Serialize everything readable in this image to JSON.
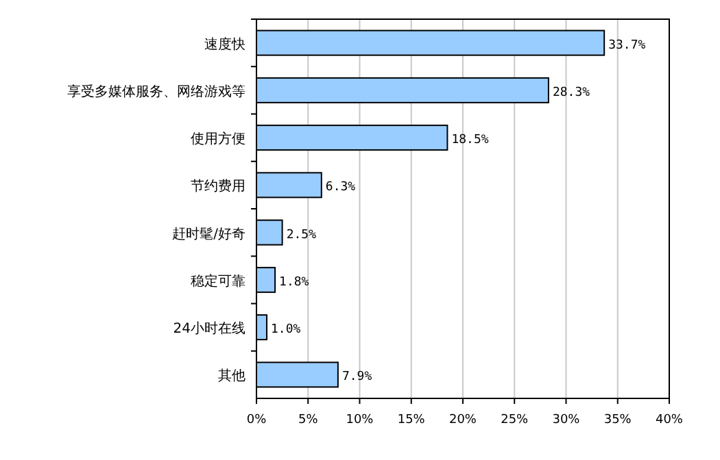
{
  "chart_data": {
    "type": "bar",
    "orientation": "horizontal",
    "categories": [
      "速度快",
      "享受多媒体服务、网络游戏等",
      "使用方便",
      "节约费用",
      "赶时髦/好奇",
      "稳定可靠",
      "24小时在线",
      "其他"
    ],
    "values": [
      33.7,
      28.3,
      18.5,
      6.3,
      2.5,
      1.8,
      1.0,
      7.9
    ],
    "value_labels": [
      "33.7%",
      "28.3%",
      "18.5%",
      "6.3%",
      "2.5%",
      "1.8%",
      "1.0%",
      "7.9%"
    ],
    "color": "#99ccff",
    "xlim": [
      0,
      40
    ],
    "xticks": [
      {
        "value": 0,
        "label": "0%"
      },
      {
        "value": 5,
        "label": "5%"
      },
      {
        "value": 10,
        "label": "10%"
      },
      {
        "value": 15,
        "label": "15%"
      },
      {
        "value": 20,
        "label": "20%"
      },
      {
        "value": 25,
        "label": "25%"
      },
      {
        "value": 30,
        "label": "30%"
      },
      {
        "value": 35,
        "label": "35%"
      },
      {
        "value": 40,
        "label": "40%"
      }
    ],
    "grid": "x"
  }
}
